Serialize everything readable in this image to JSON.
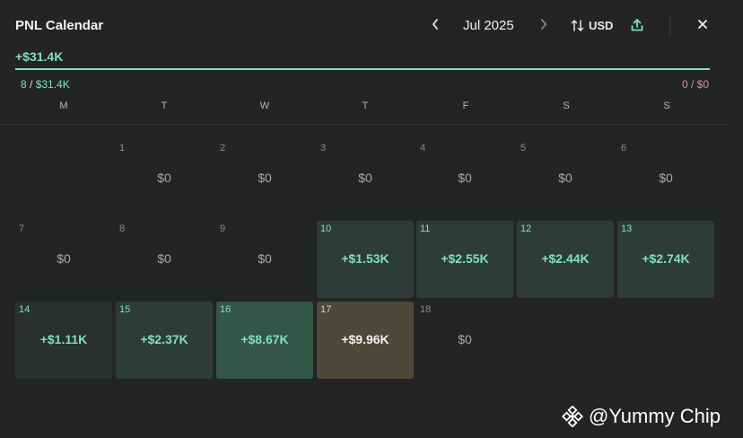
{
  "header": {
    "title": "PNL Calendar",
    "month": "Jul 2025",
    "currency": "USD",
    "prev_icon": "chevron-left-icon",
    "next_icon": "chevron-right-icon",
    "swap_icon": "swap-vertical-icon",
    "share_icon": "share-icon",
    "close_icon": "close-icon"
  },
  "summary": {
    "total": "+$31.4K",
    "progress_fraction": 1.0,
    "left_count": "8",
    "left_sep": " / ",
    "left_amount": "$31.4K",
    "right_count": "0",
    "right_sep": " / ",
    "right_amount": "$0"
  },
  "colors": {
    "accent": "#7fe0c2",
    "loss": "#e08aa6",
    "selected": "#4d4938"
  },
  "weekdays": [
    "M",
    "T",
    "W",
    "T",
    "F",
    "S",
    "S"
  ],
  "calendar": {
    "rows": [
      [
        {
          "day": "",
          "value": ""
        },
        {
          "day": "1",
          "value": "$0"
        },
        {
          "day": "2",
          "value": "$0"
        },
        {
          "day": "3",
          "value": "$0"
        },
        {
          "day": "4",
          "value": "$0"
        },
        {
          "day": "5",
          "value": "$0"
        },
        {
          "day": "6",
          "value": "$0"
        }
      ],
      [
        {
          "day": "7",
          "value": "$0"
        },
        {
          "day": "8",
          "value": "$0"
        },
        {
          "day": "9",
          "value": "$0"
        },
        {
          "day": "10",
          "value": "+$1.53K",
          "state": "pos"
        },
        {
          "day": "11",
          "value": "+$2.55K",
          "state": "pos"
        },
        {
          "day": "12",
          "value": "+$2.44K",
          "state": "pos"
        },
        {
          "day": "13",
          "value": "+$2.74K",
          "state": "pos"
        }
      ],
      [
        {
          "day": "14",
          "value": "+$1.11K",
          "state": "pos-dark"
        },
        {
          "day": "15",
          "value": "+$2.37K",
          "state": "pos"
        },
        {
          "day": "16",
          "value": "+$8.67K",
          "state": "pos-light"
        },
        {
          "day": "17",
          "value": "+$9.96K",
          "state": "sel"
        },
        {
          "day": "18",
          "value": "$0"
        }
      ]
    ]
  },
  "watermark": {
    "text": "@Yummy Chip",
    "icon": "binance-logo-icon"
  }
}
